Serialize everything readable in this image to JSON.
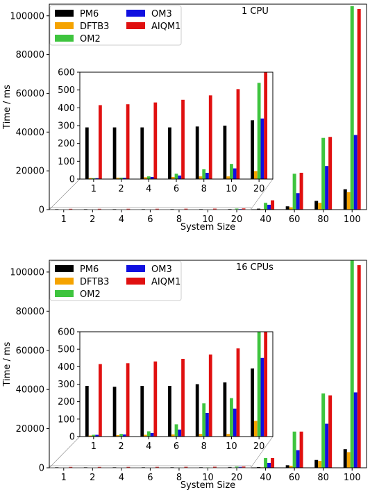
{
  "chart_data": [
    {
      "type": "bar",
      "annotation": "1 CPU",
      "xlabel": "System Size",
      "ylabel": "Time / ms",
      "categories": [
        "1",
        "2",
        "4",
        "6",
        "8",
        "10",
        "20",
        "40",
        "60",
        "80",
        "100"
      ],
      "ylim": [
        0,
        106000
      ],
      "yticks": [
        0,
        20000,
        40000,
        60000,
        80000,
        100000
      ],
      "legend": "top-left",
      "series": [
        {
          "name": "PM6",
          "color": "#000000",
          "values": [
            290,
            290,
            290,
            290,
            295,
            300,
            330,
            500,
            1700,
            4500,
            10500
          ]
        },
        {
          "name": "DFTB3",
          "color": "#f5a300",
          "values": [
            6,
            8,
            10,
            12,
            15,
            15,
            45,
            300,
            1200,
            3500,
            9000
          ]
        },
        {
          "name": "OM2",
          "color": "#3ec43e",
          "values": [
            5,
            8,
            15,
            30,
            55,
            85,
            540,
            3500,
            18500,
            37000,
            105000
          ]
        },
        {
          "name": "OM3",
          "color": "#1010e0",
          "values": [
            5,
            7,
            12,
            20,
            35,
            60,
            340,
            2500,
            8500,
            22500,
            38500
          ]
        },
        {
          "name": "AIQM1",
          "color": "#e01010",
          "values": [
            415,
            420,
            430,
            445,
            470,
            505,
            600,
            4800,
            19000,
            37500,
            103500
          ]
        }
      ],
      "inset": {
        "categories": [
          "1",
          "2",
          "4",
          "6",
          "8",
          "10",
          "20"
        ],
        "ylim": [
          0,
          600
        ],
        "yticks": [
          0,
          100,
          200,
          300,
          400,
          500,
          600
        ]
      }
    },
    {
      "type": "bar",
      "annotation": "16 CPUs",
      "xlabel": "System Size",
      "ylabel": "Time / ms",
      "categories": [
        "1",
        "2",
        "4",
        "6",
        "8",
        "10",
        "20",
        "40",
        "60",
        "80",
        "100"
      ],
      "ylim": [
        0,
        106000
      ],
      "yticks": [
        0,
        20000,
        40000,
        60000,
        80000,
        100000
      ],
      "legend": "top-left",
      "series": [
        {
          "name": "PM6",
          "color": "#000000",
          "values": [
            290,
            285,
            290,
            290,
            300,
            310,
            390,
            350,
            1300,
            4000,
            9500
          ]
        },
        {
          "name": "DFTB3",
          "color": "#f5a300",
          "values": [
            6,
            8,
            10,
            12,
            15,
            15,
            90,
            250,
            1000,
            3500,
            8000
          ]
        },
        {
          "name": "OM2",
          "color": "#3ec43e",
          "values": [
            10,
            15,
            30,
            70,
            190,
            220,
            600,
            5000,
            18500,
            38000,
            106000
          ]
        },
        {
          "name": "OM3",
          "color": "#1010e0",
          "values": [
            10,
            12,
            20,
            40,
            135,
            160,
            450,
            2500,
            9000,
            22500,
            38500
          ]
        },
        {
          "name": "AIQM1",
          "color": "#e01010",
          "values": [
            415,
            420,
            430,
            445,
            470,
            505,
            600,
            5000,
            18500,
            37000,
            103500
          ]
        }
      ],
      "inset": {
        "categories": [
          "1",
          "2",
          "4",
          "6",
          "8",
          "10",
          "20"
        ],
        "ylim": [
          0,
          600
        ],
        "yticks": [
          0,
          100,
          200,
          300,
          400,
          500,
          600
        ]
      }
    }
  ]
}
